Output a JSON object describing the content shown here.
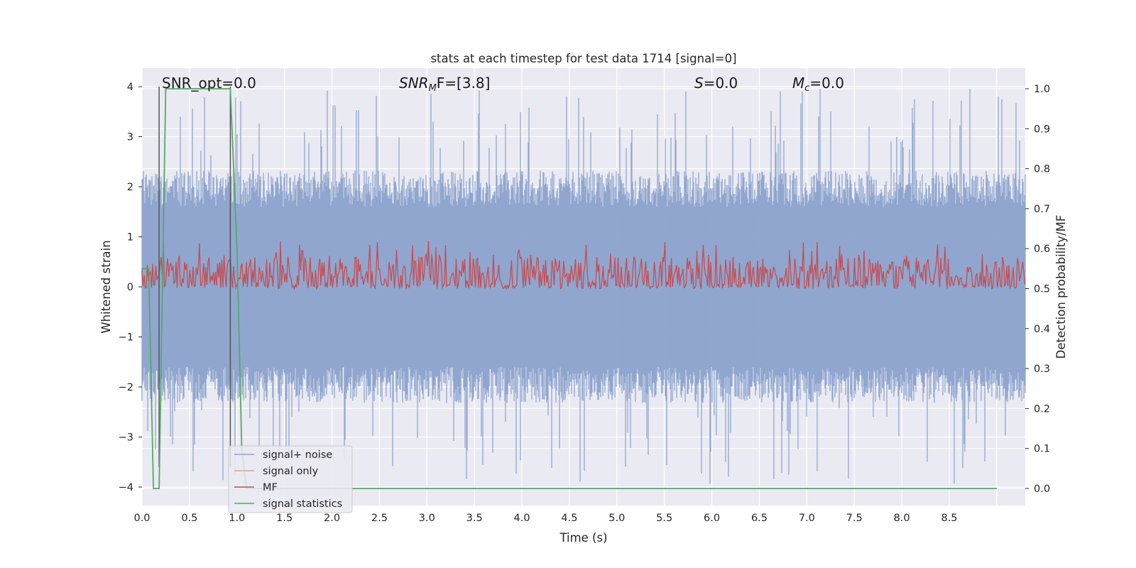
{
  "chart_data": {
    "type": "line",
    "title": "stats at each timestep for test data 1714 [signal=0]",
    "xlabel": "Time (s)",
    "ylabel": "Whitened strain",
    "ylabel_right": "Detection probability/MF",
    "xlim": [
      0.0,
      9.0
    ],
    "ylim": [
      -4.4,
      4.4
    ],
    "ylim_right": [
      -0.05,
      1.05
    ],
    "xticks": [
      "0.0",
      "0.5",
      "1.0",
      "1.5",
      "2.0",
      "2.5",
      "3.0",
      "3.5",
      "4.0",
      "4.5",
      "5.0",
      "5.5",
      "6.0",
      "6.5",
      "7.0",
      "7.5",
      "8.0",
      "8.5"
    ],
    "yticks": [
      "−4",
      "−3",
      "−2",
      "−1",
      "0",
      "1",
      "2",
      "3",
      "4"
    ],
    "yticks_right": [
      "0.0",
      "0.1",
      "0.2",
      "0.3",
      "0.4",
      "0.5",
      "0.6",
      "0.7",
      "0.8",
      "0.9",
      "1.0"
    ],
    "grid": true,
    "legend_position": "lower-left",
    "annotations": {
      "snr_opt": "SNR_opt=0.0",
      "snr_mf_base": "SNR",
      "snr_mf_sub": "M",
      "snr_mf_rest": "F=[3.8]",
      "s_var": "S",
      "s_rest": "=0.0",
      "mc_base": "M",
      "mc_sub": "c",
      "mc_rest": "=0.0"
    },
    "series": [
      {
        "name": "signal+ noise",
        "color": "#8ba2cc",
        "axis": "left",
        "noise_band": {
          "typical_abs": [
            1.6,
            2.5
          ],
          "peak_abs": 4.0
        }
      },
      {
        "name": "signal only",
        "color": "#e8a07e",
        "axis": "left",
        "values_note": "flat",
        "y": 0.0
      },
      {
        "name": "MF",
        "color": "#c44e52",
        "axis": "right",
        "band": {
          "min": 0.5,
          "typical_max": 0.58,
          "peak": 0.62
        }
      },
      {
        "name": "signal statistics",
        "color": "#55a868",
        "axis": "right",
        "x": [
          0.0,
          0.07,
          0.12,
          0.18,
          0.25,
          0.93,
          1.0,
          1.05,
          1.1,
          9.0
        ],
        "y": [
          0.55,
          0.55,
          0.0,
          0.0,
          1.0,
          1.0,
          0.6,
          0.1,
          0.0,
          0.0
        ]
      }
    ],
    "vertical_lines": {
      "x": [
        0.18,
        0.93
      ],
      "color": "#555555"
    }
  }
}
